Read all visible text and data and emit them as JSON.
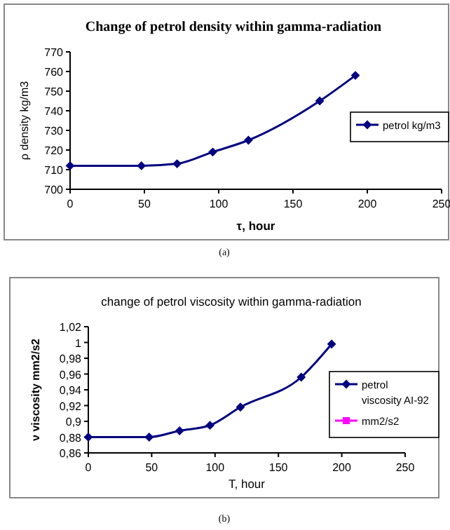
{
  "chart_data": [
    {
      "type": "line",
      "title": "Change of petrol density within gamma-radiation",
      "xlabel": "τ, hour",
      "ylabel": "ρ  density  kg/m3",
      "annotations": [
        "(a)"
      ],
      "x": [
        0,
        48,
        72,
        96,
        120,
        168,
        192
      ],
      "series": [
        {
          "name": "petrol kg/m3",
          "color": "#000080",
          "values": [
            712,
            712,
            713,
            719,
            725,
            745,
            758
          ]
        }
      ],
      "xlim": [
        0,
        250
      ],
      "xticks": [
        0,
        50,
        100,
        150,
        200,
        250
      ],
      "ylim": [
        700,
        770
      ],
      "yticks": [
        700,
        710,
        720,
        730,
        740,
        750,
        760,
        770
      ],
      "grid": false,
      "legend": "right",
      "marker": "diamond",
      "line_style": "solid"
    },
    {
      "type": "line",
      "title": "change of petrol viscosity within gamma-radiation",
      "xlabel": "T, hour",
      "ylabel": "ν  viscosity   mm2/s2",
      "annotations": [
        "(b)"
      ],
      "x": [
        0,
        48,
        72,
        96,
        120,
        168,
        192
      ],
      "series": [
        {
          "name": "petrol viscosity  AI-92",
          "color": "#000080",
          "values": [
            0.88,
            0.88,
            0.888,
            0.895,
            0.918,
            0.956,
            0.998
          ]
        },
        {
          "name": "mm2/s2",
          "color": "#ff00ff",
          "values": [
            null,
            null,
            null,
            null,
            null,
            null,
            null
          ]
        }
      ],
      "xlim": [
        0,
        250
      ],
      "xticks": [
        0,
        50,
        100,
        150,
        200,
        250
      ],
      "ylim": [
        0.86,
        1.02
      ],
      "yticks": [
        {
          "value": 0.86,
          "label": "0,86"
        },
        {
          "value": 0.88,
          "label": "0,88"
        },
        {
          "value": 0.9,
          "label": "0,9"
        },
        {
          "value": 0.92,
          "label": "0,92"
        },
        {
          "value": 0.94,
          "label": "0,94"
        },
        {
          "value": 0.96,
          "label": "0,96"
        },
        {
          "value": 0.98,
          "label": "0,98"
        },
        {
          "value": 1,
          "label": "1"
        },
        {
          "value": 1.02,
          "label": "1,02"
        }
      ],
      "grid": false,
      "legend": "right",
      "marker": "diamond",
      "line_style": "solid"
    }
  ]
}
